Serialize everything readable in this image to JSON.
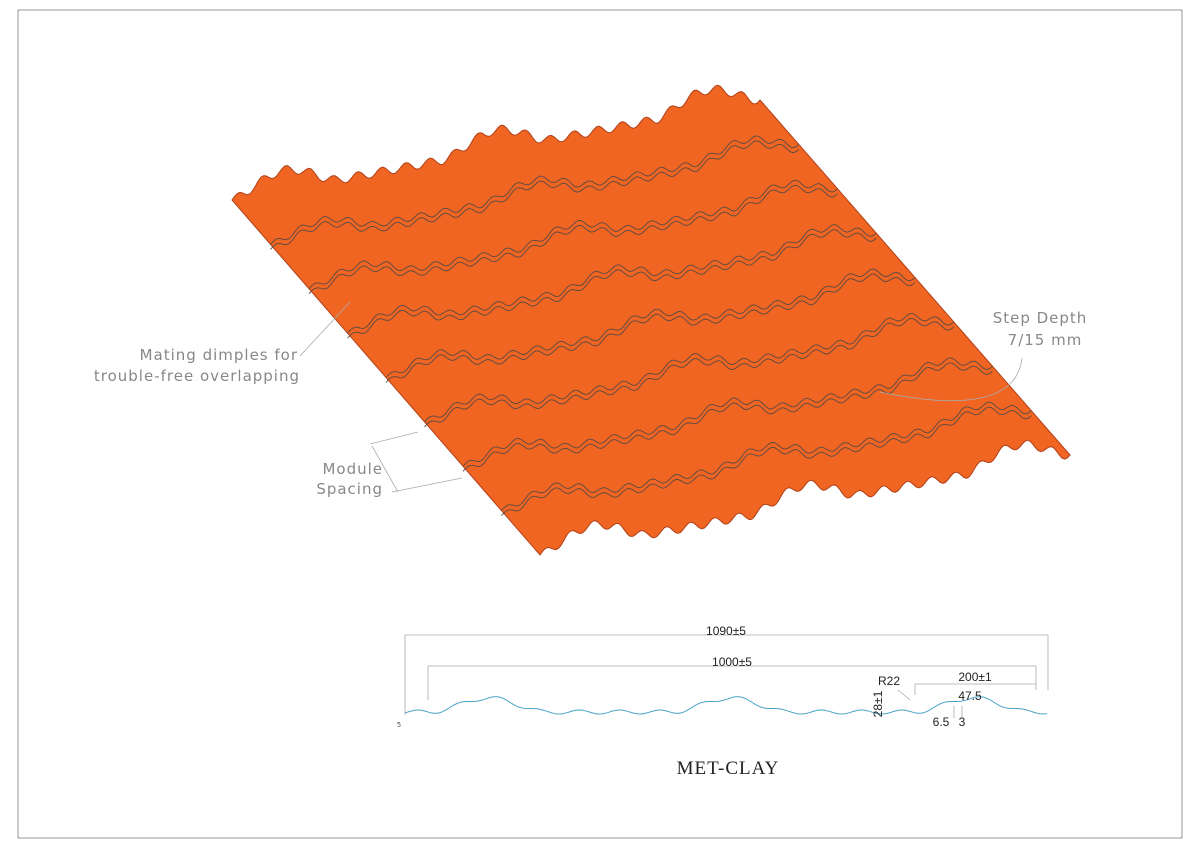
{
  "annotations": {
    "dimples": [
      "Mating dimples for",
      "trouble-free overlapping"
    ],
    "step_depth": [
      "Step Depth",
      "7/15 mm"
    ],
    "module_spacing": [
      "Module",
      "Spacing"
    ]
  },
  "profile": {
    "overall_width": "1090±5",
    "cover_width": "1000±5",
    "radius": "R22",
    "pitch": "200±1",
    "height": "28±1",
    "crest": "47.5",
    "dim_a": "6.5",
    "dim_b": "3",
    "edge": "5"
  },
  "title": "MET-CLAY"
}
